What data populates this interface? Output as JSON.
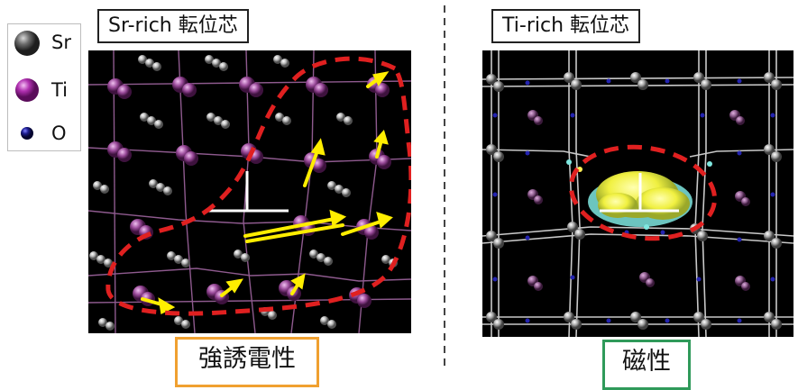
{
  "legend": {
    "items": [
      {
        "label": "Sr",
        "icon": "sr-atom-icon",
        "color": "#555555"
      },
      {
        "label": "Ti",
        "icon": "ti-atom-icon",
        "color": "#b030b0"
      },
      {
        "label": "O",
        "icon": "o-atom-icon",
        "color": "#1a1a8c"
      }
    ]
  },
  "left_panel": {
    "title": "Sr-rich 転位芯",
    "result": "強誘電性",
    "result_border_color": "#f0a030"
  },
  "right_panel": {
    "title": "Ti-rich 転位芯",
    "result": "磁性",
    "result_border_color": "#2f9a5a"
  },
  "colors": {
    "dashed_outline": "#e02020",
    "arrows": "#ffee00",
    "divider": "#444444"
  }
}
